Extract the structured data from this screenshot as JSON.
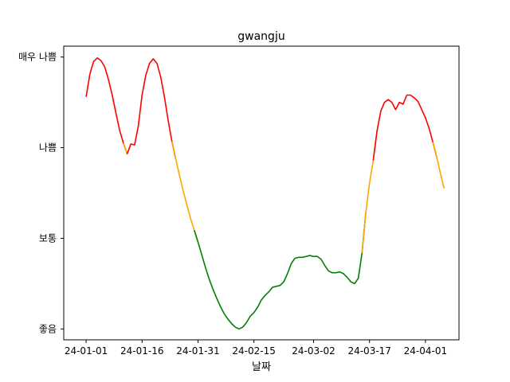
{
  "chart_data": {
    "type": "line",
    "title": "gwangju",
    "xlabel": "날짜",
    "ylabel": "",
    "x_ticks": [
      "24-01-01",
      "24-01-16",
      "24-01-31",
      "24-02-15",
      "24-03-02",
      "24-03-17",
      "24-04-01"
    ],
    "y_ticks": [
      {
        "value": 0,
        "label": "좋음"
      },
      {
        "value": 1,
        "label": "보통"
      },
      {
        "value": 2,
        "label": "나쁨"
      },
      {
        "value": 3,
        "label": "매우 나쁨"
      }
    ],
    "xlim": [
      "2023-12-26",
      "2024-04-10"
    ],
    "ylim": [
      -0.12,
      3.12
    ],
    "grid": false,
    "level_colors": {
      "good": "#008000",
      "moderate": "#ffa500",
      "bad": "#ff0000"
    },
    "series": [
      {
        "points": [
          [
            "2024-01-01",
            2.56
          ],
          [
            "2024-01-02",
            2.81
          ],
          [
            "2024-01-03",
            2.95
          ],
          [
            "2024-01-04",
            2.99
          ],
          [
            "2024-01-05",
            2.96
          ],
          [
            "2024-01-06",
            2.89
          ],
          [
            "2024-01-07",
            2.75
          ],
          [
            "2024-01-08",
            2.58
          ],
          [
            "2024-01-09",
            2.38
          ],
          [
            "2024-01-10",
            2.19
          ],
          [
            "2024-01-11",
            2.05
          ],
          [
            "2024-01-12",
            1.93
          ],
          [
            "2024-01-13",
            2.04
          ],
          [
            "2024-01-14",
            2.03
          ],
          [
            "2024-01-15",
            2.24
          ],
          [
            "2024-01-16",
            2.58
          ],
          [
            "2024-01-17",
            2.8
          ],
          [
            "2024-01-18",
            2.93
          ],
          [
            "2024-01-19",
            2.98
          ],
          [
            "2024-01-20",
            2.93
          ],
          [
            "2024-01-21",
            2.78
          ],
          [
            "2024-01-22",
            2.56
          ],
          [
            "2024-01-23",
            2.3
          ],
          [
            "2024-01-24",
            2.07
          ],
          [
            "2024-01-25",
            1.88
          ],
          [
            "2024-01-26",
            1.7
          ],
          [
            "2024-01-27",
            1.53
          ],
          [
            "2024-01-28",
            1.37
          ],
          [
            "2024-01-29",
            1.22
          ],
          [
            "2024-01-30",
            1.09
          ],
          [
            "2024-01-31",
            0.96
          ],
          [
            "2024-02-01",
            0.82
          ],
          [
            "2024-02-02",
            0.68
          ],
          [
            "2024-02-03",
            0.55
          ],
          [
            "2024-02-04",
            0.44
          ],
          [
            "2024-02-05",
            0.34
          ],
          [
            "2024-02-06",
            0.25
          ],
          [
            "2024-02-07",
            0.17
          ],
          [
            "2024-02-08",
            0.11
          ],
          [
            "2024-02-09",
            0.06
          ],
          [
            "2024-02-10",
            0.02
          ],
          [
            "2024-02-11",
            0.0
          ],
          [
            "2024-02-12",
            0.02
          ],
          [
            "2024-02-13",
            0.07
          ],
          [
            "2024-02-14",
            0.14
          ],
          [
            "2024-02-15",
            0.18
          ],
          [
            "2024-02-16",
            0.24
          ],
          [
            "2024-02-17",
            0.32
          ],
          [
            "2024-02-18",
            0.37
          ],
          [
            "2024-02-19",
            0.41
          ],
          [
            "2024-02-20",
            0.46
          ],
          [
            "2024-02-21",
            0.47
          ],
          [
            "2024-02-22",
            0.48
          ],
          [
            "2024-02-23",
            0.52
          ],
          [
            "2024-02-24",
            0.61
          ],
          [
            "2024-02-25",
            0.72
          ],
          [
            "2024-02-26",
            0.78
          ],
          [
            "2024-02-27",
            0.79
          ],
          [
            "2024-02-28",
            0.79
          ],
          [
            "2024-02-29",
            0.8
          ],
          [
            "2024-03-01",
            0.81
          ],
          [
            "2024-03-02",
            0.8
          ],
          [
            "2024-03-03",
            0.8
          ],
          [
            "2024-03-04",
            0.77
          ],
          [
            "2024-03-05",
            0.7
          ],
          [
            "2024-03-06",
            0.64
          ],
          [
            "2024-03-07",
            0.62
          ],
          [
            "2024-03-08",
            0.62
          ],
          [
            "2024-03-09",
            0.63
          ],
          [
            "2024-03-10",
            0.61
          ],
          [
            "2024-03-11",
            0.57
          ],
          [
            "2024-03-12",
            0.52
          ],
          [
            "2024-03-13",
            0.5
          ],
          [
            "2024-03-14",
            0.56
          ],
          [
            "2024-03-15",
            0.84
          ],
          [
            "2024-03-16",
            1.28
          ],
          [
            "2024-03-17",
            1.61
          ],
          [
            "2024-03-18",
            1.86
          ],
          [
            "2024-03-19",
            2.18
          ],
          [
            "2024-03-20",
            2.4
          ],
          [
            "2024-03-21",
            2.5
          ],
          [
            "2024-03-22",
            2.53
          ],
          [
            "2024-03-23",
            2.5
          ],
          [
            "2024-03-24",
            2.42
          ],
          [
            "2024-03-25",
            2.5
          ],
          [
            "2024-03-26",
            2.48
          ],
          [
            "2024-03-27",
            2.58
          ],
          [
            "2024-03-28",
            2.58
          ],
          [
            "2024-03-29",
            2.55
          ],
          [
            "2024-03-30",
            2.51
          ],
          [
            "2024-03-31",
            2.42
          ],
          [
            "2024-04-01",
            2.33
          ],
          [
            "2024-04-02",
            2.21
          ],
          [
            "2024-04-03",
            2.06
          ],
          [
            "2024-04-04",
            1.9
          ],
          [
            "2024-04-05",
            1.72
          ],
          [
            "2024-04-06",
            1.55
          ]
        ]
      }
    ]
  }
}
